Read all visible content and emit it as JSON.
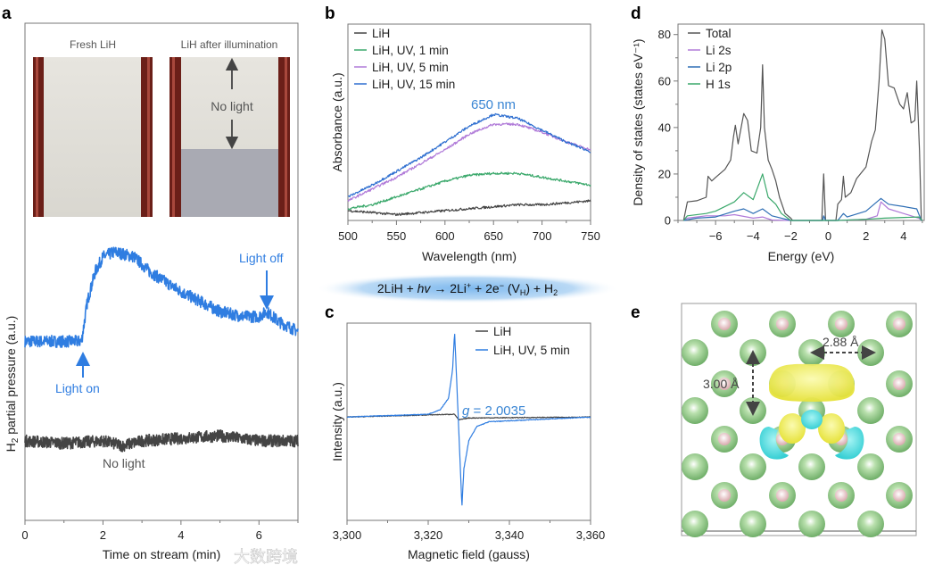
{
  "figure": {
    "panel_labels": [
      "a",
      "b",
      "c",
      "d",
      "e"
    ],
    "colors": {
      "blue": "#2f7de1",
      "dark": "#444444",
      "green": "#3aa86b",
      "purple": "#b07ad8",
      "lip": "#2f6fb5",
      "axis": "#777777"
    },
    "panel_a": {
      "photo_left_caption": "Fresh LiH",
      "photo_right_caption": "LiH after illumination",
      "photo_annotation": "No light",
      "light_on": "Light on",
      "light_off": "Light off",
      "no_light": "No light",
      "ylabel_main": "H",
      "ylabel_sub": "2",
      "ylabel_rest": " partial pressure (a.u.)",
      "xlabel": "Time on stream (min)"
    },
    "equation": [
      "2LiH + ",
      "hv",
      " → 2Li",
      "+",
      " + 2e",
      "−",
      " (V",
      "H",
      ") + H",
      "2"
    ],
    "panel_c": {
      "g_symbol": "g",
      "g_value": " = 2.0035"
    },
    "panel_b": {
      "peak_annotation": "650 nm"
    },
    "panel_e": {
      "distance_horizontal": "2.88 Å",
      "distance_vertical": "3.00 Å"
    },
    "watermark": "大数跨境"
  },
  "chart_data": [
    {
      "id": "a",
      "type": "line",
      "xlabel": "Time on stream (min)",
      "ylabel": "H2 partial pressure (a.u.)",
      "xlim": [
        0,
        7
      ],
      "ylim": [
        0,
        1
      ],
      "xticks": [
        "0",
        "2",
        "4",
        "6"
      ],
      "xtick_values": [
        0,
        2,
        4,
        6
      ],
      "series": [
        {
          "name": "Light on/off",
          "color": "#2f7de1",
          "points": [
            [
              0,
              0.36
            ],
            [
              1.45,
              0.36
            ],
            [
              1.6,
              0.44
            ],
            [
              1.8,
              0.5
            ],
            [
              2.0,
              0.53
            ],
            [
              2.3,
              0.54
            ],
            [
              2.8,
              0.53
            ],
            [
              3.2,
              0.5
            ],
            [
              4,
              0.46
            ],
            [
              5,
              0.42
            ],
            [
              5.6,
              0.41
            ],
            [
              6.0,
              0.41
            ],
            [
              6.2,
              0.42
            ],
            [
              6.5,
              0.4
            ],
            [
              7,
              0.38
            ]
          ]
        },
        {
          "name": "No light",
          "color": "#444444",
          "points": [
            [
              0,
              0.16
            ],
            [
              1,
              0.155
            ],
            [
              2,
              0.16
            ],
            [
              2.5,
              0.15
            ],
            [
              3,
              0.16
            ],
            [
              4,
              0.165
            ],
            [
              5,
              0.17
            ],
            [
              6,
              0.16
            ],
            [
              7,
              0.16
            ]
          ]
        }
      ]
    },
    {
      "id": "b",
      "type": "line",
      "xlabel": "Wavelength (nm)",
      "ylabel": "Absorbance (a.u.)",
      "xlim": [
        500,
        750
      ],
      "ylim": [
        0,
        1
      ],
      "xticks": [
        "500",
        "550",
        "600",
        "650",
        "700",
        "750"
      ],
      "xtick_values": [
        500,
        550,
        600,
        650,
        700,
        750
      ],
      "x": [
        500,
        525,
        550,
        575,
        600,
        625,
        650,
        675,
        700,
        725,
        750
      ],
      "legend_position": "top-left",
      "series": [
        {
          "name": "LiH",
          "color": "#444444",
          "values": [
            0.05,
            0.04,
            0.03,
            0.04,
            0.05,
            0.06,
            0.07,
            0.08,
            0.08,
            0.09,
            0.1
          ]
        },
        {
          "name": "LiH, UV, 1 min",
          "color": "#3aa86b",
          "values": [
            0.06,
            0.08,
            0.12,
            0.16,
            0.2,
            0.23,
            0.24,
            0.24,
            0.22,
            0.2,
            0.18
          ]
        },
        {
          "name": "LiH, UV, 5 min",
          "color": "#b07ad8",
          "values": [
            0.1,
            0.16,
            0.22,
            0.29,
            0.36,
            0.44,
            0.49,
            0.49,
            0.45,
            0.4,
            0.36
          ]
        },
        {
          "name": "LiH, UV, 15 min",
          "color": "#2f6fd0",
          "values": [
            0.12,
            0.18,
            0.25,
            0.32,
            0.4,
            0.48,
            0.54,
            0.52,
            0.46,
            0.4,
            0.35
          ]
        }
      ]
    },
    {
      "id": "c",
      "type": "line",
      "xlabel": "Magnetic field (gauss)",
      "ylabel": "Intensity (a.u.)",
      "xlim": [
        3300,
        3360
      ],
      "ylim": [
        -1.1,
        1
      ],
      "xticks": [
        "3,300",
        "3,320",
        "3,340",
        "3,360"
      ],
      "xtick_values": [
        3300,
        3320,
        3340,
        3360
      ],
      "legend_position": "top-right",
      "series": [
        {
          "name": "LiH",
          "color": "#444444",
          "points": [
            [
              3300,
              0
            ],
            [
              3326.5,
              0.03
            ],
            [
              3327.5,
              -0.03
            ],
            [
              3330,
              -0.01
            ],
            [
              3360,
              0
            ]
          ]
        },
        {
          "name": "LiH, UV, 5 min",
          "color": "#2f7de1",
          "points": [
            [
              3300,
              0
            ],
            [
              3320,
              0.03
            ],
            [
              3323,
              0.08
            ],
            [
              3325,
              0.2
            ],
            [
              3326,
              0.5
            ],
            [
              3326.5,
              0.9
            ],
            [
              3327.4,
              0
            ],
            [
              3328.3,
              -0.95
            ],
            [
              3328.8,
              -0.55
            ],
            [
              3330,
              -0.25
            ],
            [
              3332,
              -0.1
            ],
            [
              3335,
              -0.05
            ],
            [
              3360,
              0
            ]
          ]
        }
      ]
    },
    {
      "id": "d",
      "type": "line",
      "xlabel": "Energy (eV)",
      "ylabel": "Density of states (states eV⁻¹)",
      "xlim": [
        -8,
        5.1
      ],
      "ylim": [
        0,
        84.5
      ],
      "xticks": [
        "−6",
        "−4",
        "−2",
        "0",
        "2",
        "4"
      ],
      "xtick_values": [
        -6,
        -4,
        -2,
        0,
        2,
        4
      ],
      "yticks": [
        "0",
        "20",
        "40",
        "60",
        "80"
      ],
      "ytick_values": [
        0,
        20,
        40,
        60,
        80
      ],
      "legend_position": "top-left",
      "series": [
        {
          "name": "Total",
          "color": "#555555",
          "points": [
            [
              -7.7,
              0
            ],
            [
              -7.5,
              8
            ],
            [
              -7,
              8.5
            ],
            [
              -6.5,
              10
            ],
            [
              -6.4,
              19
            ],
            [
              -6.2,
              17
            ],
            [
              -6,
              18.5
            ],
            [
              -5.5,
              22
            ],
            [
              -5.2,
              26
            ],
            [
              -5.05,
              36
            ],
            [
              -4.95,
              41
            ],
            [
              -4.8,
              33
            ],
            [
              -4.5,
              46
            ],
            [
              -4.3,
              43
            ],
            [
              -4.1,
              30
            ],
            [
              -3.8,
              29
            ],
            [
              -3.6,
              40
            ],
            [
              -3.5,
              67
            ],
            [
              -3.4,
              40
            ],
            [
              -3.2,
              26
            ],
            [
              -3,
              22
            ],
            [
              -2.8,
              17
            ],
            [
              -2.6,
              10
            ],
            [
              -2.3,
              3
            ],
            [
              -2.0,
              1
            ],
            [
              -1.9,
              0
            ],
            [
              -0.35,
              0
            ],
            [
              -0.25,
              20
            ],
            [
              -0.15,
              0
            ],
            [
              0.4,
              0
            ],
            [
              0.5,
              7
            ],
            [
              0.7,
              9
            ],
            [
              0.8,
              19
            ],
            [
              0.9,
              10
            ],
            [
              1.2,
              12
            ],
            [
              1.5,
              18
            ],
            [
              2.0,
              23
            ],
            [
              2.3,
              34
            ],
            [
              2.5,
              39
            ],
            [
              2.7,
              60
            ],
            [
              2.85,
              82
            ],
            [
              3.0,
              78
            ],
            [
              3.2,
              58
            ],
            [
              3.5,
              57
            ],
            [
              3.8,
              50
            ],
            [
              4.0,
              48
            ],
            [
              4.2,
              55
            ],
            [
              4.4,
              42
            ],
            [
              4.6,
              43
            ],
            [
              4.7,
              60
            ],
            [
              4.85,
              30
            ],
            [
              4.95,
              0
            ]
          ]
        },
        {
          "name": "Li 2s",
          "color": "#b07ad8",
          "points": [
            [
              -7.7,
              0
            ],
            [
              -7.5,
              1
            ],
            [
              -6.5,
              2
            ],
            [
              -5.5,
              2
            ],
            [
              -5,
              2.5
            ],
            [
              -4,
              1
            ],
            [
              -3.5,
              1.5
            ],
            [
              -3,
              0.2
            ],
            [
              -2,
              0
            ],
            [
              0.5,
              0
            ],
            [
              2,
              0.5
            ],
            [
              2.6,
              2
            ],
            [
              2.8,
              8
            ],
            [
              3.2,
              5
            ],
            [
              4,
              3
            ],
            [
              4.8,
              1
            ],
            [
              5,
              0
            ]
          ]
        },
        {
          "name": "Li 2p",
          "color": "#2f6fb5",
          "points": [
            [
              -7.7,
              0
            ],
            [
              -7,
              1
            ],
            [
              -6,
              1.5
            ],
            [
              -5,
              4
            ],
            [
              -4.5,
              5
            ],
            [
              -4,
              3
            ],
            [
              -3.5,
              5
            ],
            [
              -3,
              2
            ],
            [
              -2,
              0
            ],
            [
              -0.3,
              0
            ],
            [
              -0.25,
              2
            ],
            [
              -0.15,
              0
            ],
            [
              0.5,
              0
            ],
            [
              0.8,
              3
            ],
            [
              1,
              1.5
            ],
            [
              2,
              4
            ],
            [
              2.8,
              9.5
            ],
            [
              3.2,
              7
            ],
            [
              4,
              6
            ],
            [
              4.7,
              5
            ],
            [
              4.95,
              0
            ]
          ]
        },
        {
          "name": "H 1s",
          "color": "#3aa86b",
          "points": [
            [
              -7.7,
              0
            ],
            [
              -7.5,
              2
            ],
            [
              -6.5,
              3
            ],
            [
              -6,
              4
            ],
            [
              -5,
              8
            ],
            [
              -4.5,
              12
            ],
            [
              -4,
              9
            ],
            [
              -3.5,
              20
            ],
            [
              -3.2,
              10
            ],
            [
              -2.8,
              7
            ],
            [
              -2.5,
              3
            ],
            [
              -2,
              0
            ],
            [
              0.5,
              0
            ],
            [
              2,
              0.5
            ],
            [
              3,
              1
            ],
            [
              4.8,
              1.5
            ],
            [
              5,
              0
            ]
          ]
        }
      ]
    }
  ]
}
